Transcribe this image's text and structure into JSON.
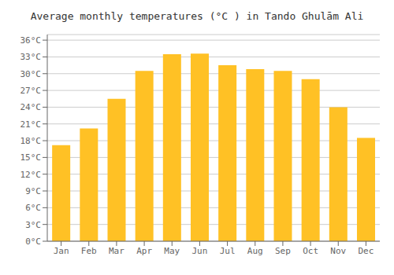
{
  "chart_data": {
    "type": "bar",
    "title": "Average monthly temperatures (°C ) in Tando Ghulām Ali",
    "categories": [
      "Jan",
      "Feb",
      "Mar",
      "Apr",
      "May",
      "Jun",
      "Jul",
      "Aug",
      "Sep",
      "Oct",
      "Nov",
      "Dec"
    ],
    "values": [
      17.2,
      20.2,
      25.5,
      30.5,
      33.5,
      33.6,
      31.5,
      30.8,
      30.5,
      29.0,
      24.0,
      18.5
    ],
    "color": "#FFC125",
    "ylim": [
      0,
      37
    ],
    "yticks": [
      {
        "value": 0,
        "label": "0°C"
      },
      {
        "value": 3,
        "label": "3°C"
      },
      {
        "value": 6,
        "label": "6°C"
      },
      {
        "value": 9,
        "label": "9°C"
      },
      {
        "value": 12,
        "label": "12°C"
      },
      {
        "value": 15,
        "label": "15°C"
      },
      {
        "value": 18,
        "label": "18°C"
      },
      {
        "value": 21,
        "label": "21°C"
      },
      {
        "value": 24,
        "label": "24°C"
      },
      {
        "value": 27,
        "label": "27°C"
      },
      {
        "value": 30,
        "label": "30°C"
      },
      {
        "value": 33,
        "label": "33°C"
      },
      {
        "value": 36,
        "label": "36°C"
      }
    ],
    "grid": true
  }
}
